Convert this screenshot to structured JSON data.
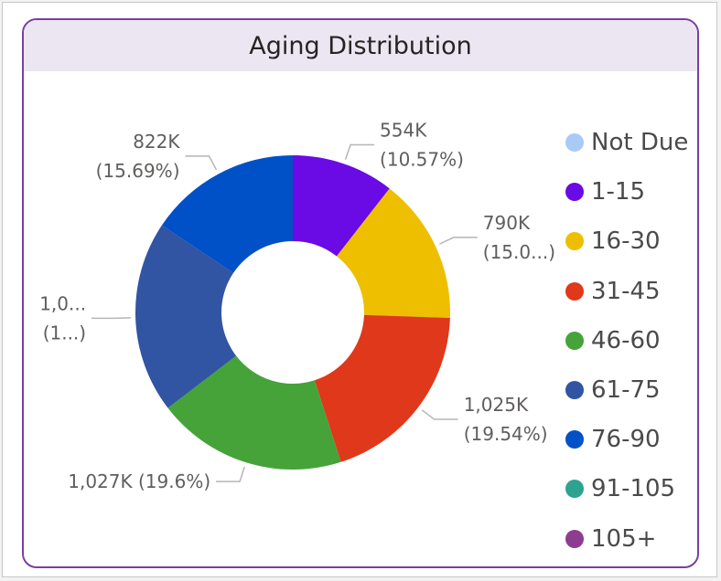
{
  "chart_data": {
    "type": "donut",
    "title": "Aging Distribution",
    "categories": [
      "Not Due",
      "1-15",
      "16-30",
      "31-45",
      "46-60",
      "61-75",
      "76-90",
      "91-105",
      "105+"
    ],
    "values": [
      0,
      554,
      790,
      1025,
      1027,
      1040,
      822,
      0,
      0
    ],
    "units": "K",
    "colors": [
      "#a9caf7",
      "#6a0ae4",
      "#edbf00",
      "#e0381a",
      "#45a33a",
      "#3154a3",
      "#0050c8",
      "#2ea38f",
      "#8e3c8f"
    ],
    "data_labels": [
      {
        "category": "1-15",
        "lines": [
          "554K",
          "(10.57%)"
        ]
      },
      {
        "category": "16-30",
        "lines": [
          "790K",
          "(15.0...)"
        ]
      },
      {
        "category": "31-45",
        "lines": [
          "1,025K",
          "(19.54%)"
        ]
      },
      {
        "category": "46-60",
        "lines": [
          "1,027K (19.6%)"
        ]
      },
      {
        "category": "61-75",
        "lines": [
          "1,0...",
          "(1...)"
        ]
      },
      {
        "category": "76-90",
        "lines": [
          "822K",
          "(15.69%)"
        ]
      }
    ],
    "legend_position": "right"
  }
}
